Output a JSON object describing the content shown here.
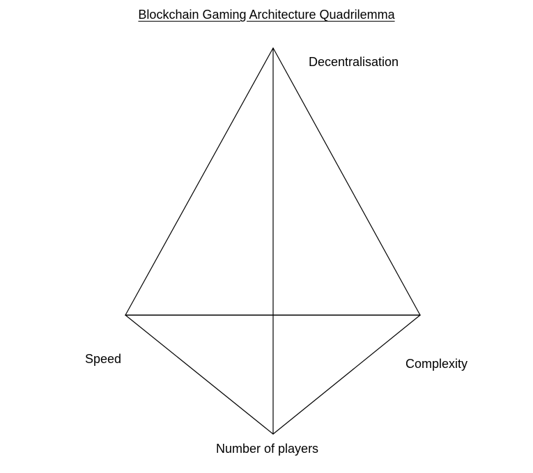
{
  "title": "Blockchain Gaming Architecture Quadrilemma",
  "vertices": {
    "top": "Decentralisation",
    "left": "Speed",
    "right": "Complexity",
    "bottom": "Number of players"
  }
}
